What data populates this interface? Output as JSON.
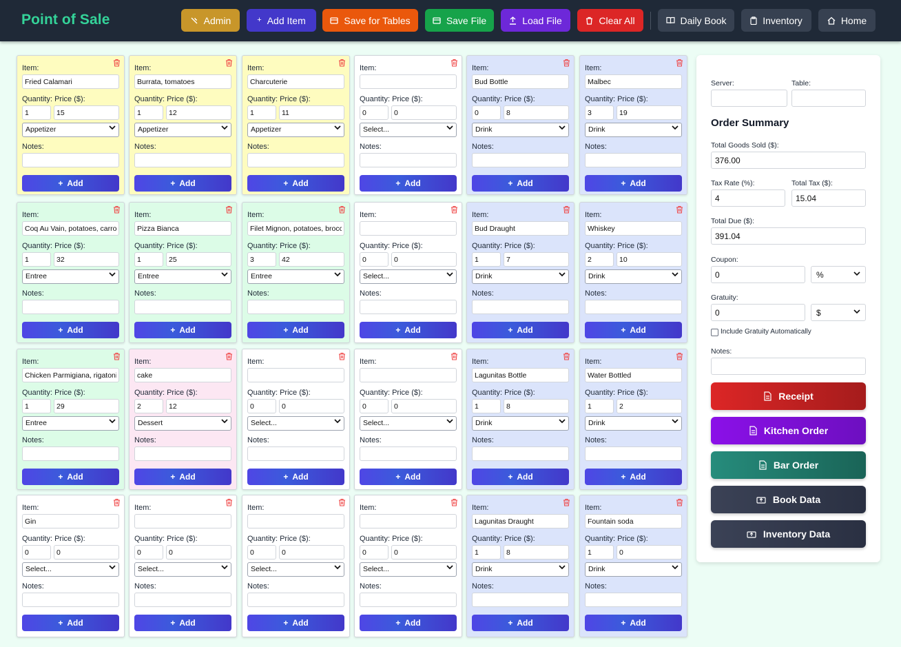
{
  "app": {
    "title": "Point of Sale"
  },
  "header_buttons": [
    {
      "label": "Admin",
      "icon": "wrench-icon",
      "color": "#c8962a"
    },
    {
      "label": "Add Item",
      "icon": "plus-icon",
      "color": "#4338ca"
    },
    {
      "label": "Save for Tables",
      "icon": "folder-icon",
      "color": "#ea580c"
    },
    {
      "label": "Save File",
      "icon": "folder-icon",
      "color": "#16a34a"
    },
    {
      "label": "Load File",
      "icon": "upload-icon",
      "color": "#6d28d9"
    },
    {
      "label": "Clear All",
      "icon": "trash-icon",
      "color": "#dc2626"
    },
    {
      "label": "Daily Book",
      "icon": "book-icon",
      "color": "#374151"
    },
    {
      "label": "Inventory",
      "icon": "clipboard-icon",
      "color": "#374151"
    },
    {
      "label": "Home",
      "icon": "home-icon",
      "color": "#374151"
    }
  ],
  "card_labels": {
    "item": "Item:",
    "qty_price": "Quantity: Price ($):",
    "notes": "Notes:",
    "add": "Add"
  },
  "category_colors": {
    "Appetizer": "#fefcbf",
    "Entree": "#dcfce7",
    "Dessert": "#fce7f3",
    "Drink": "#dbe4fb",
    "none": "#ffffff"
  },
  "cards": [
    {
      "item": "Fried Calamari",
      "qty": "1",
      "price": "15",
      "category": "Appetizer",
      "notes": ""
    },
    {
      "item": "Burrata, tomatoes",
      "qty": "1",
      "price": "12",
      "category": "Appetizer",
      "notes": ""
    },
    {
      "item": "Charcuterie",
      "qty": "1",
      "price": "11",
      "category": "Appetizer",
      "notes": ""
    },
    {
      "item": "",
      "qty": "0",
      "price": "0",
      "category": "Select...",
      "notes": ""
    },
    {
      "item": "Bud Bottle",
      "qty": "0",
      "price": "8",
      "category": "Drink",
      "notes": ""
    },
    {
      "item": "Malbec",
      "qty": "3",
      "price": "19",
      "category": "Drink",
      "notes": ""
    },
    {
      "item": "Coq Au Vain, potatoes, carrots",
      "qty": "1",
      "price": "32",
      "category": "Entree",
      "notes": ""
    },
    {
      "item": "Pizza Bianca",
      "qty": "1",
      "price": "25",
      "category": "Entree",
      "notes": ""
    },
    {
      "item": "Filet Mignon, potatoes, broccoli",
      "qty": "3",
      "price": "42",
      "category": "Entree",
      "notes": ""
    },
    {
      "item": "",
      "qty": "0",
      "price": "0",
      "category": "Select...",
      "notes": ""
    },
    {
      "item": "Bud Draught",
      "qty": "1",
      "price": "7",
      "category": "Drink",
      "notes": ""
    },
    {
      "item": "Whiskey",
      "qty": "2",
      "price": "10",
      "category": "Drink",
      "notes": ""
    },
    {
      "item": "Chicken Parmigiana, rigatoni",
      "qty": "1",
      "price": "29",
      "category": "Entree",
      "notes": ""
    },
    {
      "item": "cake",
      "qty": "2",
      "price": "12",
      "category": "Dessert",
      "notes": ""
    },
    {
      "item": "",
      "qty": "0",
      "price": "0",
      "category": "Select...",
      "notes": ""
    },
    {
      "item": "",
      "qty": "0",
      "price": "0",
      "category": "Select...",
      "notes": ""
    },
    {
      "item": "Lagunitas Bottle",
      "qty": "1",
      "price": "8",
      "category": "Drink",
      "notes": ""
    },
    {
      "item": "Water Bottled",
      "qty": "1",
      "price": "2",
      "category": "Drink",
      "notes": ""
    },
    {
      "item": "Gin",
      "qty": "0",
      "price": "0",
      "category": "Select...",
      "notes": ""
    },
    {
      "item": "",
      "qty": "0",
      "price": "0",
      "category": "Select...",
      "notes": ""
    },
    {
      "item": "",
      "qty": "0",
      "price": "0",
      "category": "Select...",
      "notes": ""
    },
    {
      "item": "",
      "qty": "0",
      "price": "0",
      "category": "Select...",
      "notes": ""
    },
    {
      "item": "Lagunitas Draught",
      "qty": "1",
      "price": "8",
      "category": "Drink",
      "notes": ""
    },
    {
      "item": "Fountain soda",
      "qty": "1",
      "price": "0",
      "category": "Drink",
      "notes": ""
    }
  ],
  "summary": {
    "server_label": "Server:",
    "server_value": "",
    "table_label": "Table:",
    "table_value": "",
    "title": "Order Summary",
    "goods_label": "Total Goods Sold ($):",
    "goods_value": "376.00",
    "tax_rate_label": "Tax Rate (%):",
    "tax_rate_value": "4",
    "total_tax_label": "Total Tax ($):",
    "total_tax_value": "15.04",
    "total_due_label": "Total Due ($):",
    "total_due_value": "391.04",
    "coupon_label": "Coupon:",
    "coupon_value": "0",
    "coupon_unit": "%",
    "gratuity_label": "Gratuity:",
    "gratuity_value": "0",
    "gratuity_unit": "$",
    "include_gratuity_label": "Include Gratuity Automatically",
    "notes_label": "Notes:",
    "notes_value": ""
  },
  "actions": [
    {
      "label": "Receipt",
      "icon": "document-icon",
      "color": "#c81e1e"
    },
    {
      "label": "Kitchen Order",
      "icon": "document-icon",
      "color": "#7e0fd6"
    },
    {
      "label": "Bar Order",
      "icon": "document-icon",
      "color": "#1e7a6c"
    },
    {
      "label": "Book Data",
      "icon": "upload-box-icon",
      "color": "#363d52"
    },
    {
      "label": "Inventory Data",
      "icon": "upload-box-icon",
      "color": "#363d52"
    }
  ]
}
